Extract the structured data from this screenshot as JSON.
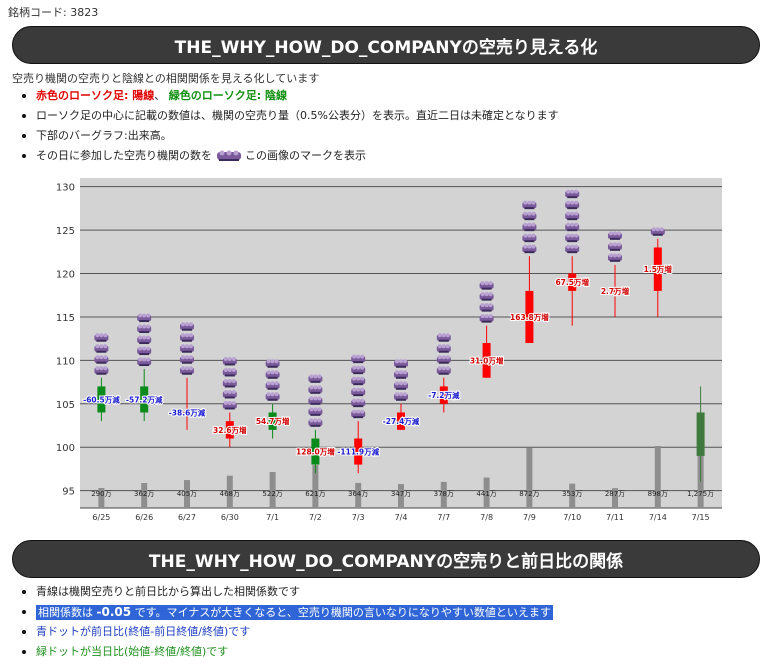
{
  "stock_code_label": "銘柄コード: 3823",
  "section1": {
    "title": "THE_WHY_HOW_DO_COMPANYの空売り見える化",
    "description": "空売り機関の空売りと陰線との相関関係を見える化しています",
    "legend_red": "赤色のローソク足: 陽線",
    "legend_sep": "、",
    "legend_green": "緑色のローソク足: 陰線",
    "bullet2": "ローソク足の中心に記載の数値は、機関の空売り量（0.5%公表分）を表示。直近二日は未確定となります",
    "bullet3": "下部のバーグラフ:出来高。",
    "bullet4_before": "その日に参加した空売り機関の数を",
    "bullet4_after": "この画像のマークを表示"
  },
  "section2": {
    "title": "THE_WHY_HOW_DO_COMPANYの空売りと前日比の関係",
    "bullet1": "青線は機関空売りと前日比から算出した相関係数です",
    "corr_prefix": "相関係数は ",
    "corr_value": "-0.05",
    "corr_suffix": " です。マイナスが大きくなると、空売り機関の言いなりになりやすい数値といえます",
    "bullet3": "青ドットが前日比(終値-前日終値/終値)です",
    "bullet4": "緑ドットが当日比(始値-終値/終値)です"
  },
  "colors": {
    "up_candle": "#ff0000",
    "down_candle": "#0a8a1a",
    "last_candle": "#3e7a3e",
    "volume_bar": "#8e8e8e",
    "plot_bg": "#d3d3d3",
    "mark": "#7a5a9a"
  },
  "chart_data": {
    "type": "candlestick",
    "y_ticks": [
      95,
      100,
      105,
      110,
      115,
      120,
      125,
      130
    ],
    "ylim": [
      93,
      131
    ],
    "grid": true,
    "dates": [
      "6/25",
      "6/26",
      "6/27",
      "6/30",
      "7/1",
      "7/2",
      "7/3",
      "7/4",
      "7/7",
      "7/8",
      "7/9",
      "7/10",
      "7/11",
      "7/14",
      "7/15"
    ],
    "open": [
      107,
      107,
      104,
      101,
      104,
      101,
      98,
      102,
      105,
      108,
      112,
      118,
      118,
      118,
      104
    ],
    "close": [
      104,
      104,
      104,
      103,
      102,
      98,
      101,
      104,
      107,
      112,
      118,
      120,
      118,
      123,
      99
    ],
    "high": [
      108,
      109,
      108,
      104,
      105,
      102,
      103,
      105,
      108,
      114,
      122,
      122,
      121,
      124,
      107
    ],
    "low": [
      103,
      103,
      102,
      100,
      101,
      97,
      97,
      102,
      104,
      108,
      112,
      114,
      115,
      115,
      96
    ],
    "volume_labels": [
      "290万",
      "362万",
      "405万",
      "468万",
      "522万",
      "621万",
      "364万",
      "347万",
      "378万",
      "441万",
      "872万",
      "353万",
      "287万",
      "898万",
      "1,275万"
    ],
    "volume": [
      290,
      362,
      405,
      468,
      522,
      621,
      364,
      347,
      378,
      441,
      872,
      353,
      287,
      898,
      1275
    ],
    "short_labels": [
      "-60.5万減",
      "-57.2万減",
      "-38.6万減",
      "32.6万増",
      "54.7万増",
      "128.0万増",
      "-111.9万減",
      "-27.4万減",
      "-7.2万減",
      "31.0万増",
      "163.8万増",
      "67.5万増",
      "2.7万増",
      "1.5万増",
      ""
    ],
    "short_label_direction": [
      "down",
      "down",
      "down",
      "up",
      "up",
      "up",
      "down",
      "down",
      "down",
      "up",
      "up",
      "up",
      "up",
      "up",
      ""
    ],
    "institution_counts": [
      4,
      5,
      5,
      5,
      4,
      5,
      6,
      4,
      4,
      4,
      5,
      6,
      3,
      1,
      0
    ]
  }
}
